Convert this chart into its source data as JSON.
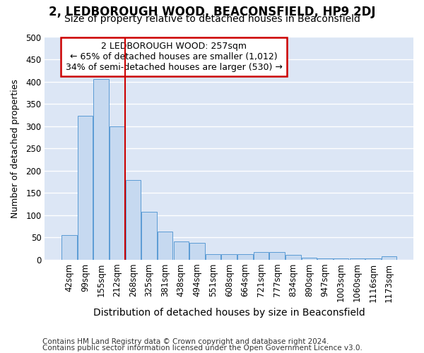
{
  "title1": "2, LEDBOROUGH WOOD, BEACONSFIELD, HP9 2DJ",
  "title2": "Size of property relative to detached houses in Beaconsfield",
  "xlabel": "Distribution of detached houses by size in Beaconsfield",
  "ylabel": "Number of detached properties",
  "categories": [
    "42sqm",
    "99sqm",
    "155sqm",
    "212sqm",
    "268sqm",
    "325sqm",
    "381sqm",
    "438sqm",
    "494sqm",
    "551sqm",
    "608sqm",
    "664sqm",
    "721sqm",
    "777sqm",
    "834sqm",
    "890sqm",
    "947sqm",
    "1003sqm",
    "1060sqm",
    "1116sqm",
    "1173sqm"
  ],
  "values": [
    55,
    323,
    405,
    300,
    178,
    108,
    63,
    40,
    37,
    12,
    12,
    12,
    17,
    17,
    10,
    5,
    3,
    3,
    3,
    3,
    7
  ],
  "bar_color": "#c6d9f0",
  "bar_edge_color": "#5b9bd5",
  "background_color": "#dce6f5",
  "grid_color": "#ffffff",
  "vline_color": "#cc0000",
  "annotation_title": "2 LEDBOROUGH WOOD: 257sqm",
  "annotation_line1": "← 65% of detached houses are smaller (1,012)",
  "annotation_line2": "34% of semi-detached houses are larger (530) →",
  "annotation_box_facecolor": "#ffffff",
  "annotation_box_edgecolor": "#cc0000",
  "footer1": "Contains HM Land Registry data © Crown copyright and database right 2024.",
  "footer2": "Contains public sector information licensed under the Open Government Licence v3.0.",
  "fig_facecolor": "#ffffff",
  "ylim": [
    0,
    500
  ],
  "yticks": [
    0,
    50,
    100,
    150,
    200,
    250,
    300,
    350,
    400,
    450,
    500
  ],
  "title1_fontsize": 12,
  "title2_fontsize": 10,
  "xlabel_fontsize": 10,
  "ylabel_fontsize": 9,
  "tick_fontsize": 8.5,
  "annotation_fontsize": 9,
  "footer_fontsize": 7.5
}
